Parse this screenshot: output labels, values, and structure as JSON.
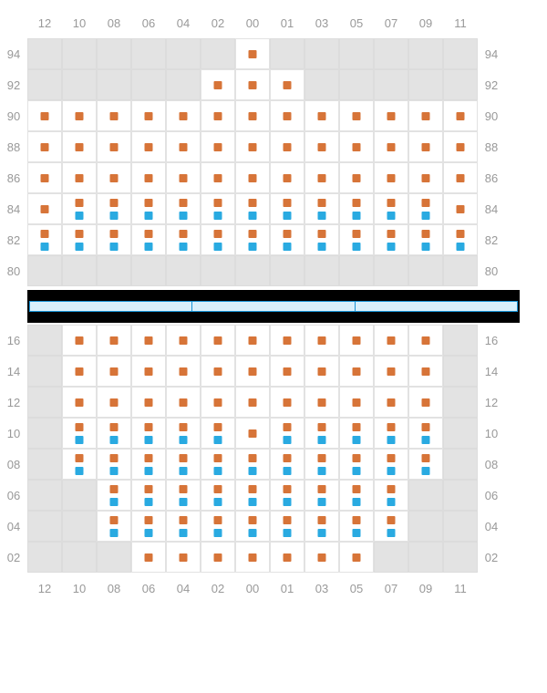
{
  "colors": {
    "orange": "#d77438",
    "blue": "#29aae1",
    "inactive": "#e3e3e3",
    "active": "#ffffff",
    "label": "#999999"
  },
  "colLabels": [
    "12",
    "10",
    "08",
    "06",
    "04",
    "02",
    "00",
    "01",
    "03",
    "05",
    "07",
    "09",
    "11"
  ],
  "top": {
    "rowLabels": [
      "94",
      "92",
      "90",
      "88",
      "86",
      "84",
      "82",
      "80"
    ],
    "cells": [
      [
        "",
        "",
        "",
        "",
        "",
        "",
        "S",
        "",
        "",
        "",
        "",
        "",
        ""
      ],
      [
        "",
        "",
        "",
        "",
        "",
        "S",
        "S",
        "S",
        "",
        "",
        "",
        "",
        ""
      ],
      [
        "S",
        "S",
        "S",
        "S",
        "S",
        "S",
        "S",
        "S",
        "S",
        "S",
        "S",
        "S",
        "S"
      ],
      [
        "S",
        "S",
        "S",
        "S",
        "S",
        "S",
        "S",
        "S",
        "S",
        "S",
        "S",
        "S",
        "S"
      ],
      [
        "S",
        "S",
        "S",
        "S",
        "S",
        "S",
        "S",
        "S",
        "S",
        "S",
        "S",
        "S",
        "S"
      ],
      [
        "S",
        "D",
        "D",
        "D",
        "D",
        "D",
        "D",
        "D",
        "D",
        "D",
        "D",
        "D",
        "S"
      ],
      [
        "D",
        "D",
        "D",
        "D",
        "D",
        "D",
        "D",
        "D",
        "D",
        "D",
        "D",
        "D",
        "D"
      ],
      [
        "",
        "",
        "",
        "",
        "",
        "",
        "",
        "",
        "",
        "",
        "",
        "",
        ""
      ]
    ]
  },
  "bottom": {
    "rowLabels": [
      "16",
      "14",
      "12",
      "10",
      "08",
      "06",
      "04",
      "02"
    ],
    "cells": [
      [
        "",
        "S",
        "S",
        "S",
        "S",
        "S",
        "S",
        "S",
        "S",
        "S",
        "S",
        "S",
        ""
      ],
      [
        "",
        "S",
        "S",
        "S",
        "S",
        "S",
        "S",
        "S",
        "S",
        "S",
        "S",
        "S",
        ""
      ],
      [
        "",
        "S",
        "S",
        "S",
        "S",
        "S",
        "S",
        "S",
        "S",
        "S",
        "S",
        "S",
        ""
      ],
      [
        "",
        "D",
        "D",
        "D",
        "D",
        "D",
        "S",
        "D",
        "D",
        "D",
        "D",
        "D",
        ""
      ],
      [
        "",
        "D",
        "D",
        "D",
        "D",
        "D",
        "D",
        "D",
        "D",
        "D",
        "D",
        "D",
        ""
      ],
      [
        "",
        "",
        "D",
        "D",
        "D",
        "D",
        "D",
        "D",
        "D",
        "D",
        "D",
        "",
        ""
      ],
      [
        "",
        "",
        "D",
        "D",
        "D",
        "D",
        "D",
        "D",
        "D",
        "D",
        "D",
        "",
        ""
      ],
      [
        "",
        "",
        "",
        "S",
        "S",
        "S",
        "S",
        "S",
        "S",
        "S",
        "",
        "",
        ""
      ]
    ]
  }
}
